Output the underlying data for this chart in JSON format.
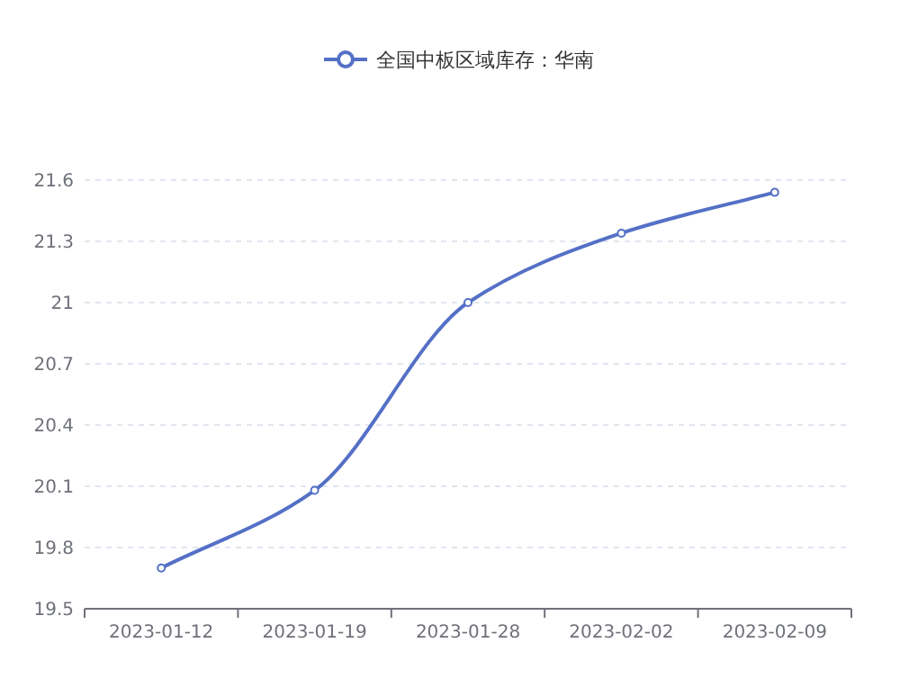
{
  "chart_data": {
    "type": "line",
    "categories": [
      "2023-01-12",
      "2023-01-19",
      "2023-01-28",
      "2023-02-02",
      "2023-02-09"
    ],
    "series": [
      {
        "name": "全国中板区域库存：华南",
        "color": "#5470c6",
        "values": [
          19.7,
          20.08,
          21.0,
          21.34,
          21.54
        ]
      }
    ],
    "ylim": [
      19.5,
      21.6
    ],
    "yticks": [
      19.5,
      19.8,
      20.1,
      20.4,
      20.7,
      21,
      21.3,
      21.6
    ],
    "grid": "y",
    "legend": "top",
    "marker": "circle",
    "line_style": "solid"
  }
}
